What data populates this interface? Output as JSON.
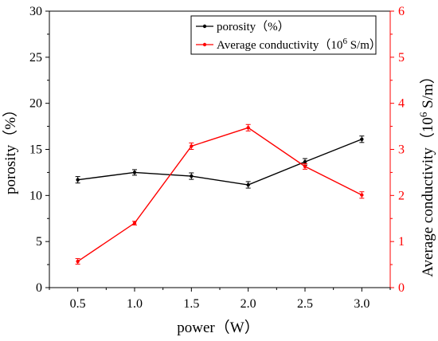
{
  "chart_data": {
    "type": "line",
    "x": [
      0.5,
      1.0,
      1.5,
      2.0,
      2.5,
      3.0
    ],
    "x_tick_labels": [
      "0.5",
      "1.0",
      "1.5",
      "2.0",
      "2.5",
      "3.0"
    ],
    "xlabel": "power（W）",
    "xlim": [
      0.25,
      3.25
    ],
    "y_left": {
      "label": "porosity（%）",
      "lim": [
        0,
        30
      ],
      "ticks": [
        "0",
        "5",
        "10",
        "15",
        "20",
        "25",
        "30"
      ],
      "color": "#000000"
    },
    "y_right": {
      "label": "Average conductivity（10⁶ S/m）",
      "label_base": "Average conductivity（10",
      "label_sup": "6",
      "label_rest": " S/m）",
      "lim": [
        0,
        6
      ],
      "ticks": [
        "0",
        "1",
        "2",
        "3",
        "4",
        "5",
        "6"
      ],
      "color": "#ff0000"
    },
    "series": [
      {
        "name": "porosity（%）",
        "axis": "left",
        "color": "#000000",
        "values": [
          11.7,
          12.5,
          12.1,
          11.15,
          13.65,
          16.1
        ],
        "errors": [
          0.35,
          0.3,
          0.35,
          0.35,
          0.35,
          0.35
        ]
      },
      {
        "name": "Average conductivity（10⁶ S/m）",
        "name_base": "Average conductivity（10",
        "name_sup": "6",
        "name_rest": " S/m）",
        "axis": "right",
        "color": "#ff0000",
        "values": [
          0.57,
          1.4,
          3.07,
          3.47,
          2.63,
          2.01
        ],
        "errors": [
          0.06,
          0.04,
          0.07,
          0.07,
          0.06,
          0.07
        ]
      }
    ],
    "legend_position": "top-right",
    "grid": false
  }
}
